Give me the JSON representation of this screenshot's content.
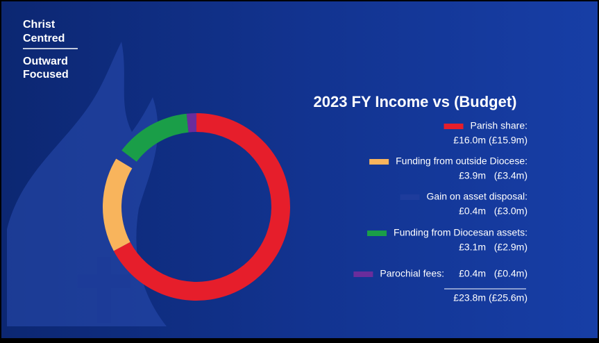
{
  "branding": {
    "lines": [
      "Christ",
      "Centred",
      "Outward",
      "Focused"
    ]
  },
  "chart_data": {
    "type": "donut",
    "title": "2023 FY Income vs (Budget)",
    "categories": [
      "Parish share:",
      "Funding from outside Diocese:",
      "Gain on asset disposal:",
      "Funding from Diocesan assets:",
      "Parochial fees:"
    ],
    "values": [
      16.0,
      3.9,
      0.4,
      3.1,
      0.4
    ],
    "value_labels": [
      "£16.0m",
      "£3.9m",
      "£0.4m",
      "£3.1m",
      "£0.4m"
    ],
    "budget_values": [
      15.9,
      3.4,
      3.0,
      2.9,
      0.4
    ],
    "budget_labels": [
      "(£15.9m)",
      "(£3.4m)",
      "(£3.0m)",
      "(£2.9m)",
      "(£0.4m)"
    ],
    "colors": [
      "#e61e2b",
      "#f8b45c",
      "#1e3c9c",
      "#1a9e48",
      "#6a2d9c"
    ],
    "total_value": 23.8,
    "total_label": "£23.8m",
    "budget_total": 25.6,
    "budget_total_label": "(£25.6m)"
  }
}
